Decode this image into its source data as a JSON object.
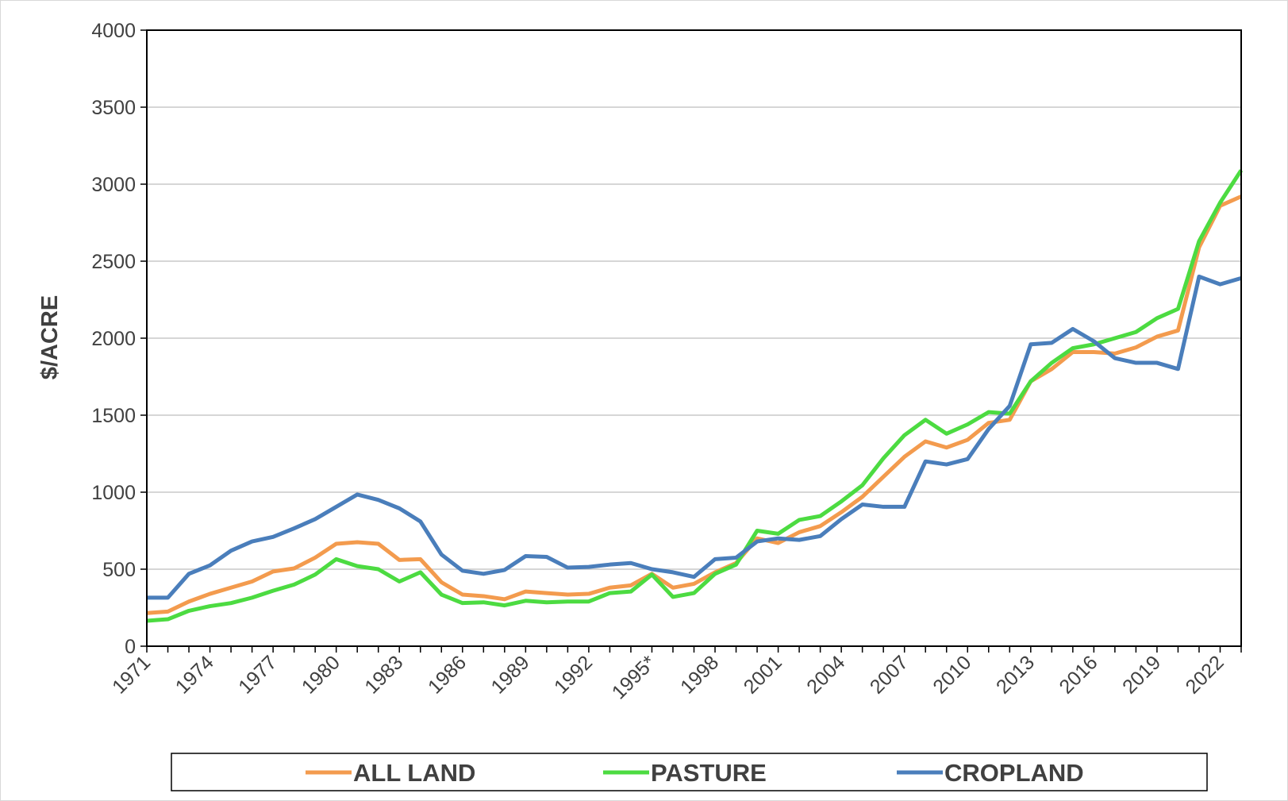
{
  "chart_data": {
    "type": "line",
    "y_label": "$/ACRE",
    "categories": [
      "1971",
      null,
      null,
      "1974",
      null,
      null,
      "1977",
      null,
      null,
      "1980",
      null,
      null,
      "1983",
      null,
      null,
      "1986",
      null,
      null,
      "1989",
      null,
      null,
      "1992",
      null,
      null,
      "1995*",
      null,
      null,
      "1998",
      null,
      null,
      "2001",
      null,
      null,
      "2004",
      null,
      null,
      "2007",
      null,
      null,
      "2010",
      null,
      null,
      "2013",
      null,
      null,
      "2016",
      null,
      null,
      "2019",
      null,
      null,
      "2022",
      null
    ],
    "series": [
      {
        "name": "ALL LAND",
        "color": "#f39b4e",
        "values": [
          215,
          225,
          290,
          340,
          380,
          420,
          485,
          505,
          575,
          665,
          675,
          665,
          560,
          565,
          415,
          335,
          325,
          305,
          355,
          345,
          335,
          340,
          380,
          395,
          470,
          380,
          405,
          480,
          540,
          700,
          670,
          740,
          780,
          870,
          970,
          1100,
          1230,
          1330,
          1290,
          1340,
          1450,
          1470,
          1720,
          1800,
          1910,
          1910,
          1900,
          1940,
          2010,
          2050,
          2590,
          2860,
          2920
        ]
      },
      {
        "name": "PASTURE",
        "color": "#4cdb41",
        "values": [
          165,
          175,
          230,
          260,
          280,
          315,
          360,
          400,
          465,
          565,
          520,
          500,
          420,
          480,
          335,
          280,
          285,
          265,
          295,
          285,
          290,
          290,
          345,
          355,
          465,
          320,
          345,
          470,
          530,
          750,
          730,
          820,
          845,
          940,
          1045,
          1220,
          1370,
          1470,
          1380,
          1440,
          1520,
          1510,
          1720,
          1840,
          1935,
          1960,
          2000,
          2040,
          2130,
          2190,
          2630,
          2880,
          3090
        ]
      },
      {
        "name": "CROPLAND",
        "color": "#4a7ebb",
        "values": [
          315,
          315,
          470,
          525,
          620,
          680,
          710,
          765,
          825,
          905,
          985,
          950,
          895,
          810,
          595,
          490,
          470,
          495,
          585,
          580,
          510,
          515,
          530,
          540,
          500,
          480,
          450,
          565,
          575,
          680,
          700,
          690,
          715,
          825,
          920,
          905,
          905,
          1200,
          1180,
          1215,
          1410,
          1560,
          1960,
          1970,
          2060,
          1980,
          1870,
          1840,
          1840,
          1800,
          2400,
          2350,
          2390
        ]
      }
    ],
    "ylim": [
      0,
      4000
    ],
    "yticks": [
      0,
      500,
      1000,
      1500,
      2000,
      2500,
      3000,
      3500,
      4000
    ],
    "grid": true
  }
}
